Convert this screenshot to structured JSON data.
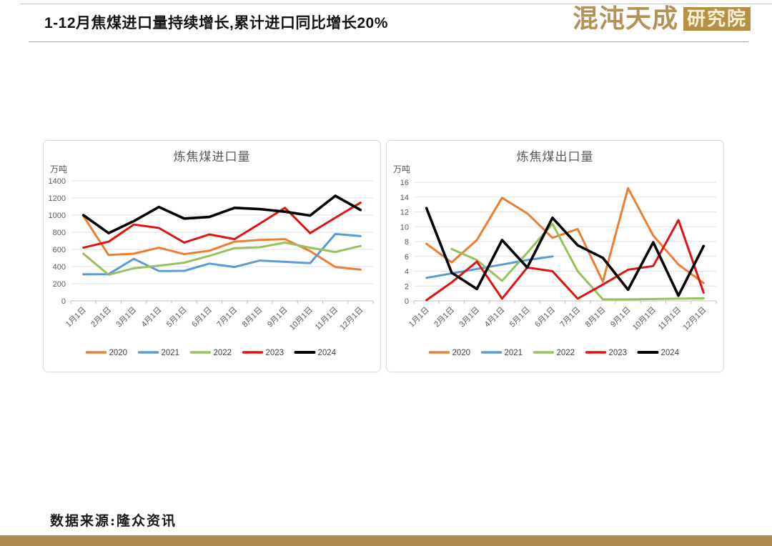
{
  "header": {
    "title": "1-12月焦煤进口量持续增长,累计进口同比增长20%",
    "logo": {
      "brand": "混沌天成",
      "badge": "研究院"
    }
  },
  "footer": {
    "source": "数据来源:隆众资讯"
  },
  "colors": {
    "accent_gold": "#AD8B52",
    "logo_gold": "#B5915A",
    "badge_bg": "#B78F47",
    "chart_text": "#595959",
    "grid_line": "#E2E2E2",
    "axis_line": "#BFBFBF"
  },
  "chart_data": [
    {
      "type": "line",
      "title": "炼焦煤进口量",
      "unit": "万吨",
      "categories": [
        "1月1日",
        "2月1日",
        "3月1日",
        "4月1日",
        "5月1日",
        "6月1日",
        "7月1日",
        "8月1日",
        "9月1日",
        "10月1日",
        "11月1日",
        "12月1日"
      ],
      "ylim": [
        0,
        1400
      ],
      "ytick_step": 200,
      "grid": true,
      "legend_position": "bottom",
      "series": [
        {
          "name": "2020",
          "color": "#ED7D31",
          "values": [
            990,
            535,
            550,
            620,
            545,
            585,
            690,
            710,
            720,
            580,
            395,
            365
          ]
        },
        {
          "name": "2021",
          "color": "#5B9BD5",
          "values": [
            310,
            312,
            490,
            348,
            350,
            435,
            395,
            470,
            455,
            440,
            780,
            755
          ]
        },
        {
          "name": "2022",
          "color": "#97C15C",
          "values": [
            550,
            305,
            380,
            410,
            445,
            525,
            615,
            625,
            680,
            620,
            570,
            640
          ]
        },
        {
          "name": "2023",
          "color": "#E01212",
          "values": [
            620,
            690,
            890,
            850,
            680,
            775,
            720,
            900,
            1085,
            790,
            970,
            1145
          ]
        },
        {
          "name": "2024",
          "color": "#000000",
          "values": [
            1000,
            790,
            930,
            1095,
            960,
            978,
            1085,
            1070,
            1040,
            995,
            1225,
            1060
          ]
        }
      ]
    },
    {
      "type": "line",
      "title": "炼焦煤出口量",
      "unit": "万吨",
      "categories": [
        "1月1日",
        "2月1日",
        "3月1日",
        "4月1日",
        "5月1日",
        "6月1日",
        "7月1日",
        "8月1日",
        "9月1日",
        "10月1日",
        "11月1日",
        "12月1日"
      ],
      "ylim": [
        0,
        16
      ],
      "ytick_step": 2,
      "grid": true,
      "legend_position": "bottom",
      "series": [
        {
          "name": "2020",
          "color": "#ED7D31",
          "values": [
            7.7,
            5.2,
            8.2,
            13.9,
            11.8,
            8.5,
            9.7,
            2.6,
            15.2,
            8.8,
            4.9,
            2.4
          ]
        },
        {
          "name": "2021",
          "color": "#5B9BD5",
          "values": [
            3.1,
            3.7,
            4.3,
            4.9,
            5.5,
            6.0,
            null,
            null,
            null,
            null,
            null,
            null
          ]
        },
        {
          "name": "2022",
          "color": "#97C15C",
          "values": [
            null,
            7.0,
            5.5,
            2.7,
            6.5,
            10.4,
            4.0,
            0.2,
            0.2,
            0.25,
            0.3,
            0.35
          ]
        },
        {
          "name": "2023",
          "color": "#E01212",
          "values": [
            0.1,
            2.5,
            5.3,
            0.3,
            4.5,
            4.0,
            0.3,
            2.2,
            4.2,
            4.7,
            10.9,
            1.1
          ]
        },
        {
          "name": "2024",
          "color": "#000000",
          "values": [
            12.5,
            3.8,
            1.6,
            8.2,
            4.5,
            11.2,
            7.5,
            5.8,
            1.5,
            7.9,
            0.7,
            7.4
          ]
        }
      ]
    }
  ]
}
